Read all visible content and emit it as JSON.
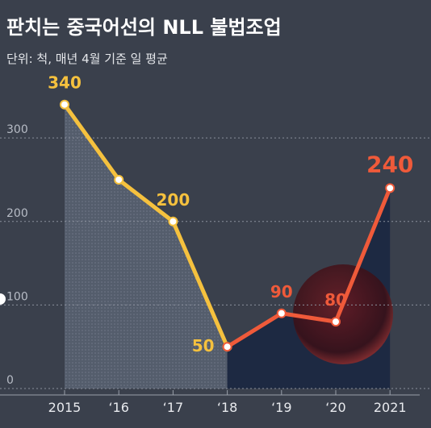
{
  "chart_data": {
    "type": "line",
    "title": "판치는 중국어선의 NLL 불법조업",
    "subtitle": "단위: 척, 매년 4월 기준 일 평균",
    "categories": [
      "2015",
      "‘16",
      "‘17",
      "‘18",
      "‘19",
      "‘20",
      "2021"
    ],
    "series": [
      {
        "color": "#f5c13e",
        "values": [
          340,
          250,
          200,
          50,
          null,
          null,
          null
        ],
        "value_labels": [
          "340",
          null,
          "200",
          "50",
          null,
          null,
          null
        ]
      },
      {
        "color": "#ef5a3a",
        "values": [
          null,
          null,
          null,
          50,
          90,
          80,
          240
        ],
        "value_labels": [
          null,
          null,
          null,
          null,
          "90",
          "80",
          "240"
        ]
      }
    ],
    "ylim": [
      0,
      360
    ],
    "yticks": [
      0,
      100,
      200,
      300
    ],
    "grid": true
  }
}
